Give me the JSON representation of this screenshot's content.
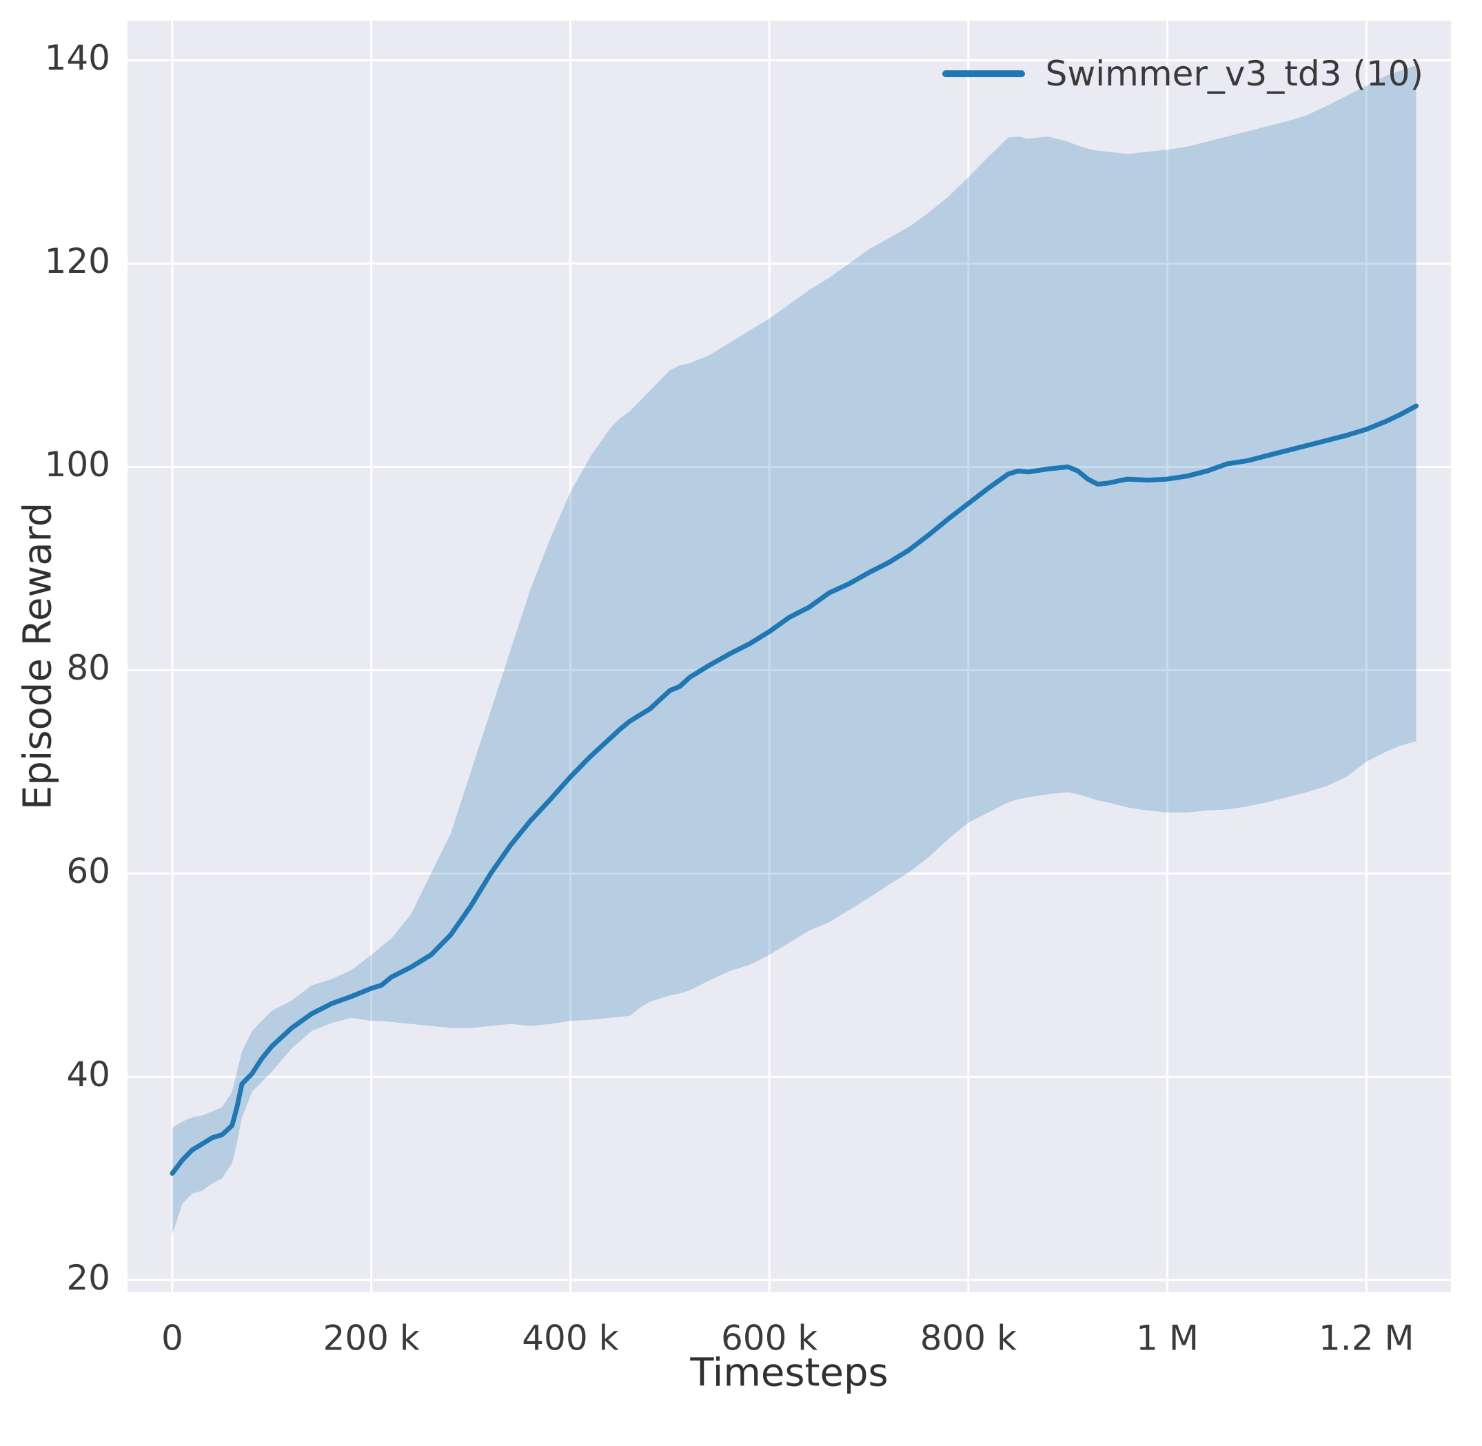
{
  "figure": {
    "background": "#ffffff"
  },
  "axes": {
    "background": "#eaeaf2",
    "grid_color": "#ffffff",
    "tick_color": "#3a3a3a"
  },
  "chart_data": {
    "type": "line",
    "title": "",
    "xlabel": "Timesteps",
    "ylabel": "Episode Reward",
    "legend_label": "Swimmer_v3_td3 (10)",
    "legend_color": "#1f77b4",
    "legend_position": "upper right",
    "grid": true,
    "xlim": [
      -45000,
      1285000
    ],
    "ylim": [
      18.8,
      143.9
    ],
    "xticks": [
      {
        "value": 0,
        "label": "0"
      },
      {
        "value": 200000,
        "label": "200 k"
      },
      {
        "value": 400000,
        "label": "400 k"
      },
      {
        "value": 600000,
        "label": "600 k"
      },
      {
        "value": 800000,
        "label": "800 k"
      },
      {
        "value": 1000000,
        "label": "1 M"
      },
      {
        "value": 1200000,
        "label": "1.2 M"
      }
    ],
    "yticks": [
      {
        "value": 20,
        "label": "20"
      },
      {
        "value": 40,
        "label": "40"
      },
      {
        "value": 60,
        "label": "60"
      },
      {
        "value": 80,
        "label": "80"
      },
      {
        "value": 100,
        "label": "100"
      },
      {
        "value": 120,
        "label": "120"
      },
      {
        "value": 140,
        "label": "140"
      }
    ],
    "series": [
      {
        "name": "Swimmer_v3_td3 (10)",
        "color": "#1f77b4",
        "band_opacity": 0.25,
        "line_width": 7,
        "x": [
          0,
          10000,
          20000,
          30000,
          40000,
          50000,
          60000,
          65000,
          70000,
          80000,
          90000,
          100000,
          120000,
          140000,
          160000,
          180000,
          200000,
          210000,
          220000,
          240000,
          260000,
          280000,
          300000,
          320000,
          340000,
          360000,
          380000,
          400000,
          420000,
          440000,
          450000,
          460000,
          470000,
          480000,
          500000,
          510000,
          520000,
          540000,
          560000,
          580000,
          600000,
          620000,
          640000,
          660000,
          680000,
          700000,
          720000,
          740000,
          760000,
          780000,
          800000,
          820000,
          840000,
          850000,
          860000,
          880000,
          900000,
          910000,
          920000,
          930000,
          940000,
          960000,
          980000,
          1000000,
          1020000,
          1040000,
          1060000,
          1080000,
          1100000,
          1120000,
          1140000,
          1160000,
          1180000,
          1200000,
          1220000,
          1235000,
          1250000
        ],
        "mean": [
          30.5,
          31.8,
          32.8,
          33.4,
          34.0,
          34.3,
          35.2,
          37.0,
          39.3,
          40.3,
          41.8,
          43.0,
          44.8,
          46.2,
          47.2,
          47.9,
          48.7,
          49.0,
          49.8,
          50.8,
          52.0,
          54.0,
          56.8,
          60.0,
          62.8,
          65.2,
          67.3,
          69.5,
          71.5,
          73.3,
          74.2,
          75.0,
          75.6,
          76.2,
          78.0,
          78.4,
          79.3,
          80.5,
          81.6,
          82.6,
          83.8,
          85.2,
          86.2,
          87.6,
          88.5,
          89.6,
          90.6,
          91.8,
          93.3,
          94.9,
          96.4,
          97.9,
          99.3,
          99.6,
          99.5,
          99.8,
          100.0,
          99.6,
          98.8,
          98.3,
          98.4,
          98.8,
          98.7,
          98.8,
          99.1,
          99.6,
          100.3,
          100.6,
          101.1,
          101.6,
          102.1,
          102.6,
          103.1,
          103.7,
          104.5,
          105.2,
          106.0
        ],
        "lower": [
          24.5,
          27.5,
          28.5,
          28.8,
          29.5,
          30.0,
          31.5,
          33.5,
          36.0,
          38.5,
          39.5,
          40.5,
          42.8,
          44.5,
          45.3,
          45.8,
          45.5,
          45.5,
          45.4,
          45.2,
          45.0,
          44.8,
          44.8,
          45.0,
          45.2,
          45.0,
          45.2,
          45.5,
          45.6,
          45.8,
          45.9,
          46.0,
          46.8,
          47.4,
          48.0,
          48.2,
          48.5,
          49.5,
          50.4,
          51.0,
          52.0,
          53.2,
          54.4,
          55.2,
          56.4,
          57.6,
          58.9,
          60.1,
          61.6,
          63.4,
          65.0,
          66.0,
          67.0,
          67.3,
          67.5,
          67.8,
          68.0,
          67.8,
          67.5,
          67.2,
          67.0,
          66.5,
          66.2,
          66.0,
          66.0,
          66.2,
          66.3,
          66.6,
          67.0,
          67.5,
          68.0,
          68.6,
          69.5,
          71.0,
          72.0,
          72.6,
          73.0
        ],
        "upper": [
          35.0,
          35.6,
          36.0,
          36.2,
          36.6,
          37.0,
          38.5,
          40.5,
          42.5,
          44.5,
          45.5,
          46.5,
          47.5,
          49.0,
          49.6,
          50.5,
          52.0,
          52.8,
          53.6,
          56.0,
          60.0,
          64.0,
          70.0,
          76.0,
          82.0,
          88.0,
          93.0,
          97.5,
          101.0,
          103.8,
          104.8,
          105.5,
          106.5,
          107.5,
          109.5,
          110.0,
          110.2,
          111.0,
          112.2,
          113.4,
          114.6,
          116.0,
          117.4,
          118.6,
          120.0,
          121.4,
          122.5,
          123.6,
          125.0,
          126.6,
          128.5,
          130.5,
          132.4,
          132.5,
          132.3,
          132.5,
          132.0,
          131.6,
          131.3,
          131.1,
          131.0,
          130.8,
          131.0,
          131.2,
          131.5,
          132.0,
          132.5,
          133.0,
          133.5,
          134.0,
          134.6,
          135.5,
          136.5,
          137.5,
          138.5,
          139.0,
          139.5
        ]
      }
    ]
  }
}
